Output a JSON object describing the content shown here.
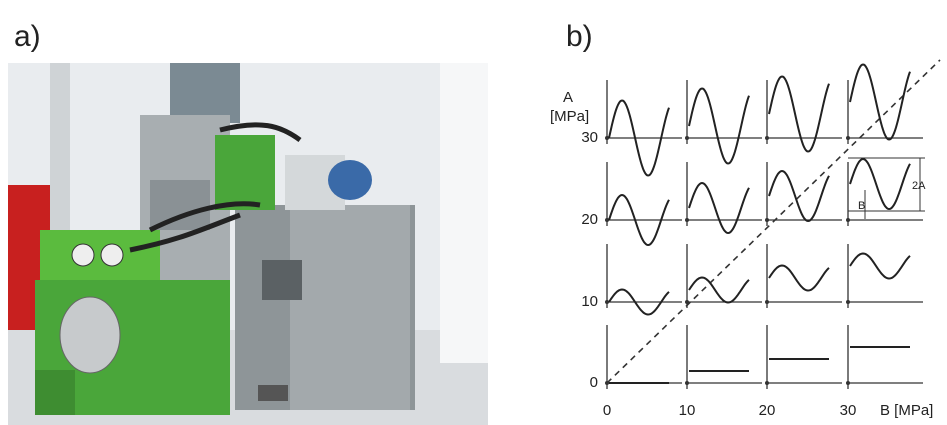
{
  "panel_a": {
    "label": "a)"
  },
  "panel_b": {
    "label": "b)",
    "y_axis_label": [
      "A",
      "[MPa]"
    ],
    "x_axis_label": "B [MPa]",
    "y_ticks": [
      "0",
      "10",
      "20",
      "30"
    ],
    "x_ticks": [
      "0",
      "10",
      "20",
      "30"
    ],
    "annotations": [
      "2A",
      "B"
    ]
  }
}
